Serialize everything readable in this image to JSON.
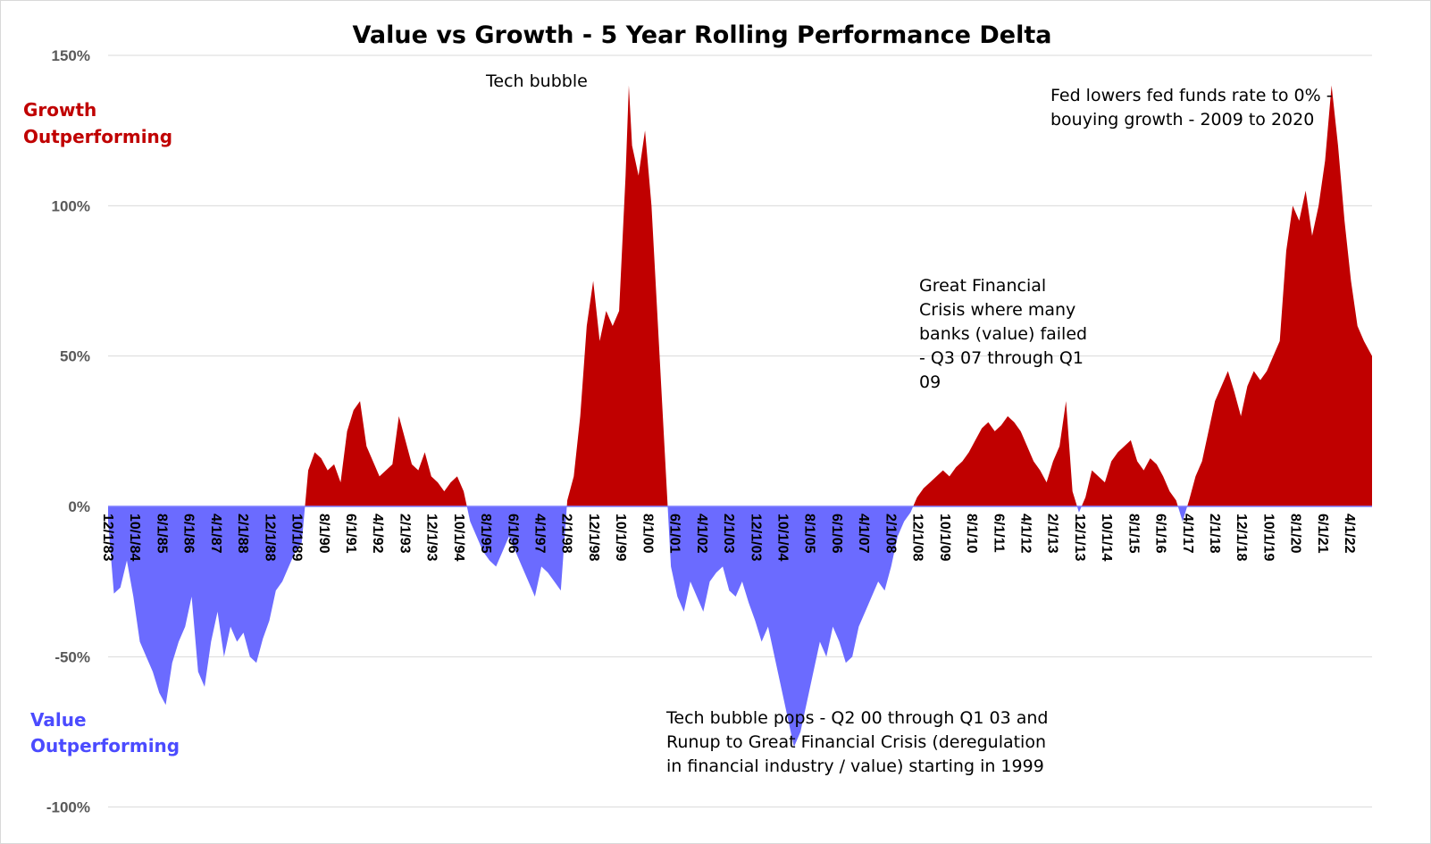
{
  "chart_data": {
    "type": "area",
    "title": "Value vs Growth - 5 Year Rolling Performance Delta",
    "ylim": [
      -100,
      150
    ],
    "y_ticks": [
      "150%",
      "100%",
      "50%",
      "0%",
      "-50%",
      "-100%"
    ],
    "y_tick_values": [
      150,
      100,
      50,
      0,
      -50,
      -100
    ],
    "x_ticks": [
      "12/1/83",
      "10/1/84",
      "8/1/85",
      "6/1/86",
      "4/1/87",
      "2/1/88",
      "12/1/88",
      "10/1/89",
      "8/1/90",
      "6/1/91",
      "4/1/92",
      "2/1/93",
      "12/1/93",
      "10/1/94",
      "8/1/95",
      "6/1/96",
      "4/1/97",
      "2/1/98",
      "12/1/98",
      "10/1/99",
      "8/1/00",
      "6/1/01",
      "4/1/02",
      "2/1/03",
      "12/1/03",
      "10/1/04",
      "8/1/05",
      "6/1/06",
      "4/1/07",
      "2/1/08",
      "12/1/08",
      "10/1/09",
      "8/1/10",
      "6/1/11",
      "4/1/12",
      "2/1/13",
      "12/1/13",
      "10/1/14",
      "8/1/15",
      "6/1/16",
      "4/1/17",
      "2/1/18",
      "12/1/18",
      "10/1/19",
      "8/1/20",
      "6/1/21",
      "4/1/22"
    ],
    "grid": true,
    "positive_color": "#c00000",
    "negative_color": "#6b6bff",
    "x_range_years": [
      1983.92,
      2022.95
    ],
    "series": [
      {
        "x": [
          1983.92,
          1984.1,
          1984.3,
          1984.5,
          1984.7,
          1984.9,
          1985.1,
          1985.3,
          1985.5,
          1985.7,
          1985.9,
          1986.1,
          1986.3,
          1986.5,
          1986.7,
          1986.9,
          1987.1,
          1987.3,
          1987.5,
          1987.7,
          1987.9,
          1988.1,
          1988.3,
          1988.5,
          1988.7,
          1988.9,
          1989.1,
          1989.3,
          1989.5,
          1989.7,
          1989.9,
          1990.1,
          1990.3,
          1990.5,
          1990.7,
          1990.9,
          1991.1,
          1991.3,
          1991.5,
          1991.7,
          1991.9,
          1992.1,
          1992.3,
          1992.5,
          1992.7,
          1992.9,
          1993.1,
          1993.3,
          1993.5,
          1993.7,
          1993.9,
          1994.1,
          1994.3,
          1994.5,
          1994.7,
          1994.9,
          1995.1,
          1995.3,
          1995.5,
          1995.7,
          1995.9,
          1996.1,
          1996.3,
          1996.5,
          1996.7,
          1996.9,
          1997.1,
          1997.3,
          1997.5,
          1997.7,
          1997.9,
          1998.1,
          1998.3,
          1998.5,
          1998.7,
          1998.9,
          1999.1,
          1999.3,
          1999.5,
          1999.7,
          1999.9,
          2000.0,
          2000.1,
          2000.3,
          2000.5,
          2000.7,
          2000.9,
          2001.1,
          2001.3,
          2001.5,
          2001.7,
          2001.9,
          2002.1,
          2002.3,
          2002.5,
          2002.7,
          2002.9,
          2003.1,
          2003.3,
          2003.5,
          2003.7,
          2003.9,
          2004.1,
          2004.3,
          2004.5,
          2004.7,
          2004.9,
          2005.1,
          2005.3,
          2005.5,
          2005.7,
          2005.9,
          2006.1,
          2006.3,
          2006.5,
          2006.7,
          2006.9,
          2007.1,
          2007.3,
          2007.5,
          2007.7,
          2007.9,
          2008.1,
          2008.3,
          2008.5,
          2008.7,
          2008.9,
          2009.1,
          2009.3,
          2009.5,
          2009.7,
          2009.9,
          2010.1,
          2010.3,
          2010.5,
          2010.7,
          2010.9,
          2011.1,
          2011.3,
          2011.5,
          2011.7,
          2011.9,
          2012.1,
          2012.3,
          2012.5,
          2012.7,
          2012.9,
          2013.1,
          2013.3,
          2013.5,
          2013.7,
          2013.9,
          2014.1,
          2014.3,
          2014.5,
          2014.7,
          2014.9,
          2015.1,
          2015.3,
          2015.5,
          2015.7,
          2015.9,
          2016.1,
          2016.3,
          2016.5,
          2016.7,
          2016.9,
          2017.1,
          2017.3,
          2017.5,
          2017.7,
          2017.9,
          2018.1,
          2018.3,
          2018.5,
          2018.7,
          2018.9,
          2019.1,
          2019.3,
          2019.5,
          2019.7,
          2019.9,
          2020.1,
          2020.3,
          2020.5,
          2020.7,
          2020.9,
          2021.1,
          2021.3,
          2021.5,
          2021.7,
          2021.9,
          2022.1,
          2022.3,
          2022.5,
          2022.7,
          2022.95
        ],
        "values": [
          -5,
          -29,
          -27,
          -18,
          -30,
          -45,
          -50,
          -55,
          -62,
          -66,
          -52,
          -45,
          -40,
          -30,
          -55,
          -60,
          -45,
          -35,
          -50,
          -40,
          -45,
          -42,
          -50,
          -52,
          -44,
          -38,
          -28,
          -25,
          -20,
          -15,
          -12,
          12,
          18,
          16,
          12,
          14,
          8,
          25,
          32,
          35,
          20,
          15,
          10,
          12,
          14,
          30,
          22,
          14,
          12,
          18,
          10,
          8,
          5,
          8,
          10,
          5,
          -5,
          -10,
          -15,
          -18,
          -20,
          -15,
          -10,
          -15,
          -20,
          -25,
          -30,
          -20,
          -22,
          -25,
          -28,
          2,
          10,
          30,
          60,
          75,
          55,
          65,
          60,
          65,
          110,
          140,
          120,
          110,
          125,
          100,
          60,
          20,
          -20,
          -30,
          -35,
          -25,
          -30,
          -35,
          -25,
          -22,
          -20,
          -28,
          -30,
          -25,
          -32,
          -38,
          -45,
          -40,
          -50,
          -60,
          -70,
          -80,
          -75,
          -65,
          -55,
          -45,
          -50,
          -40,
          -45,
          -52,
          -50,
          -40,
          -35,
          -30,
          -25,
          -28,
          -20,
          -10,
          -5,
          -2,
          3,
          6,
          8,
          10,
          12,
          10,
          13,
          15,
          18,
          22,
          26,
          28,
          25,
          27,
          30,
          28,
          25,
          20,
          15,
          12,
          8,
          15,
          20,
          35,
          5,
          -2,
          3,
          12,
          10,
          8,
          15,
          18,
          20,
          22,
          15,
          12,
          16,
          14,
          10,
          5,
          2,
          -5,
          2,
          10,
          15,
          25,
          35,
          40,
          45,
          38,
          30,
          40,
          45,
          42,
          45,
          50,
          55,
          85,
          100,
          95,
          105,
          90,
          100,
          115,
          140,
          120,
          95,
          75,
          60,
          55,
          50
        ]
      }
    ],
    "annotations": {
      "tech_bubble": "Tech bubble",
      "fed": [
        "Fed lowers fed funds rate to 0% -",
        "bouying growth - 2009 to 2020"
      ],
      "gfc": [
        "Great Financial",
        "Crisis where many",
        "banks (value) failed",
        "- Q3 07 through Q1",
        "09"
      ],
      "tech_pop": [
        "Tech bubble pops - Q2 00 through Q1 03 and",
        "Runup to Great Financial Crisis (deregulation",
        "in financial industry / value) starting in 1999"
      ]
    },
    "side_labels": {
      "growth": [
        "Growth",
        "Outperforming"
      ],
      "value": [
        "Value",
        "Outperforming"
      ]
    }
  }
}
